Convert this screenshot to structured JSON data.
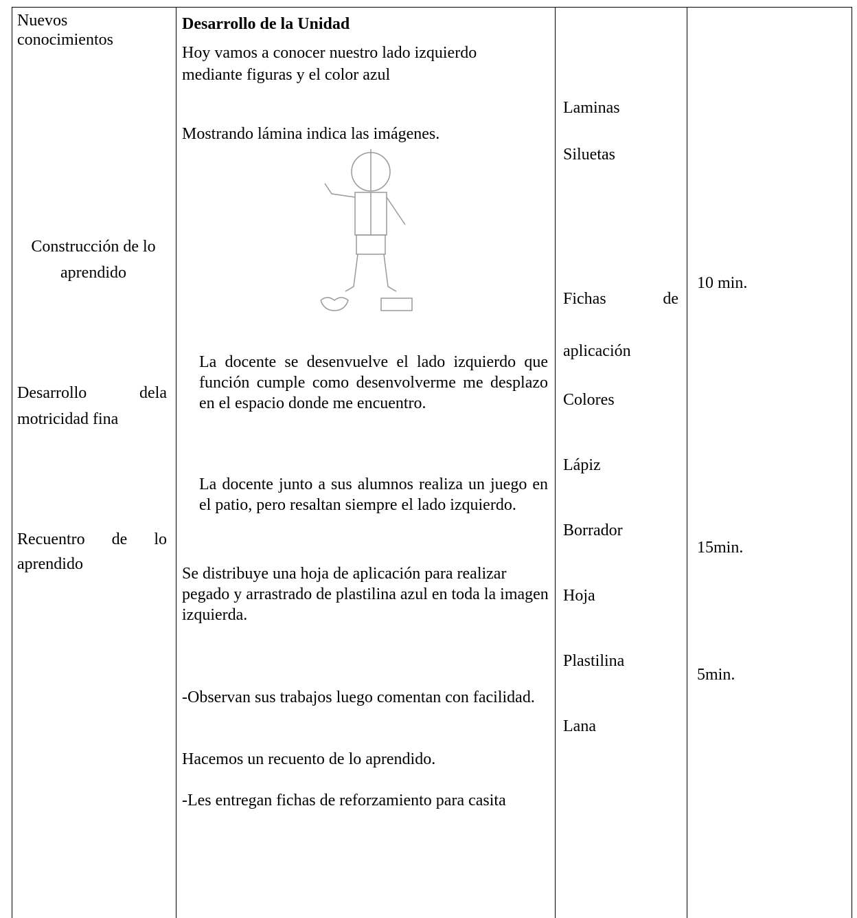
{
  "left_column": [
    "Nuevos conocimientos",
    "Construcción de lo aprendido",
    "Desarrollo dela motricidad fina",
    "Recuentro de lo aprendido"
  ],
  "activities": {
    "heading": "Desarrollo de la Unidad",
    "paragraphs": [
      "Hoy vamos a conocer nuestro lado izquierdo mediante figuras y el color azul",
      "Mostrando lámina indica las imágenes.",
      "La docente se desenvuelve el lado izquierdo que función cumple como desenvolverme me desplazo en el espacio donde me encuentro.",
      "La docente junto a sus alumnos realiza un juego en el patio, pero resaltan siempre el lado izquierdo.",
      "Se distribuye una hoja de aplicación para realizar pegado y arrastrado de plastilina azul en toda la imagen izquierda.",
      "-Observan sus trabajos luego comentan con facilidad.",
      "Hacemos un recuento de lo aprendido.",
      "-Les entregan fichas de reforzamiento para casita"
    ]
  },
  "materials": [
    "Laminas",
    "Siluetas",
    "Fichas de aplicación",
    "Colores",
    "Lápiz",
    "Borrador",
    "Hoja",
    "Plastilina",
    "Lana"
  ],
  "times": [
    "10 min.",
    "15min.",
    "5min."
  ]
}
